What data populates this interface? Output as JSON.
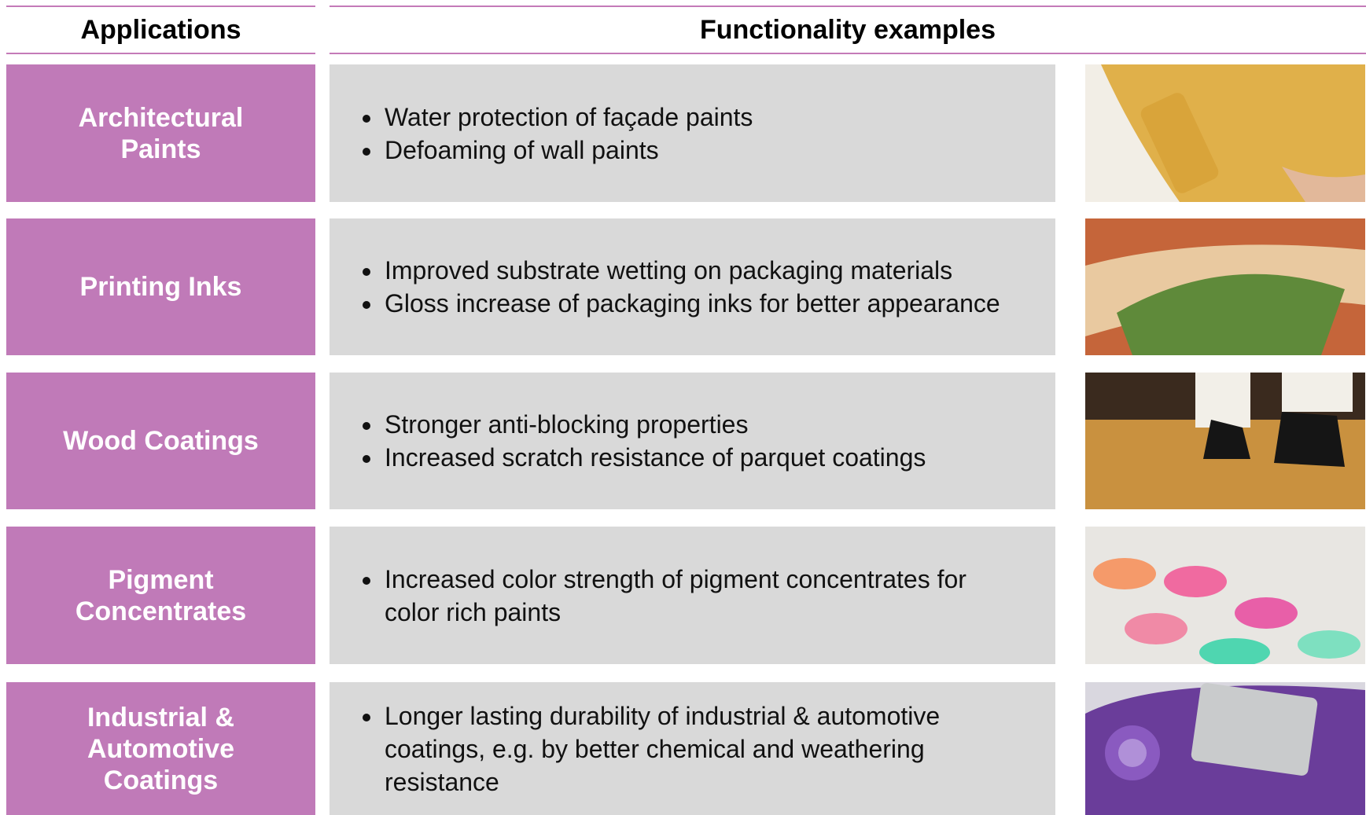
{
  "header": {
    "applications": "Applications",
    "functionality": "Functionality examples"
  },
  "rows": [
    {
      "application": [
        "Architectural",
        "Paints"
      ],
      "bullets": [
        "Water protection of façade paints",
        "Defoaming of wall paints"
      ]
    },
    {
      "application": [
        "Printing Inks"
      ],
      "bullets": [
        "Improved substrate wetting on packaging materials",
        "Gloss increase of packaging inks for better appearance"
      ]
    },
    {
      "application": [
        "Wood Coatings"
      ],
      "bullets": [
        "Stronger anti-blocking properties",
        "Increased scratch resistance of parquet coatings"
      ]
    },
    {
      "application": [
        "Pigment",
        "Concentrates"
      ],
      "bullets": [
        "Increased color strength of pigment concentrates for color rich paints"
      ]
    },
    {
      "application": [
        "Industrial &",
        "Automotive",
        "Coatings"
      ],
      "bullets": [
        "Longer lasting durability of industrial & automotive coatings, e.g. by better chemical and weathering resistance"
      ]
    }
  ]
}
